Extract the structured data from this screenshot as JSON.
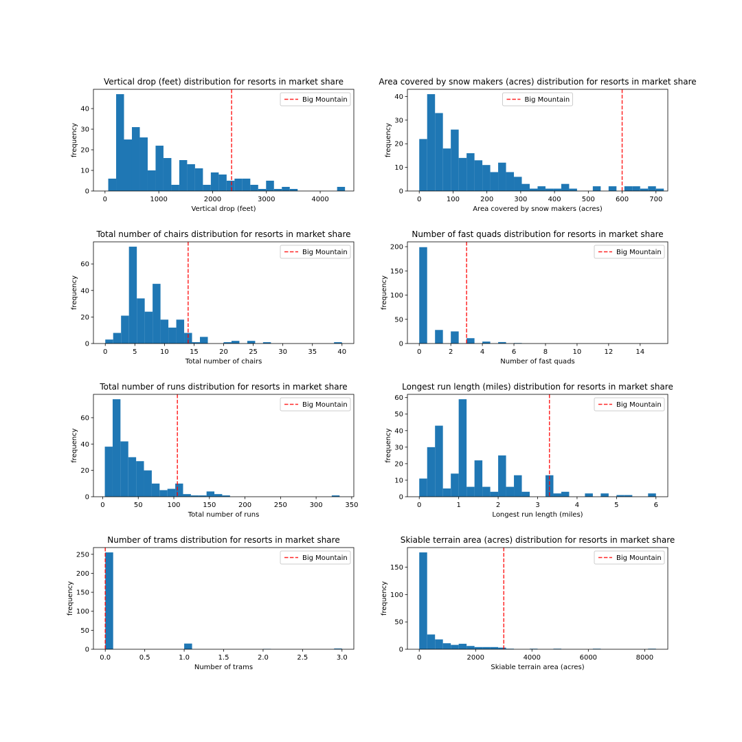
{
  "figure": {
    "width": 1080,
    "height": 1080,
    "background": "#ffffff"
  },
  "colors": {
    "bar": "#1f77b4",
    "marker": "#ff0000",
    "axis": "#000000",
    "legend_border": "#cccccc"
  },
  "ylabel_common": "frequency",
  "legend_label": "Big Mountain",
  "chart_data": [
    {
      "type": "bar",
      "title": "Vertical drop (feet) distribution for resorts in market share",
      "xlabel": "Vertical drop (feet)",
      "ylabel": "frequency",
      "xlim": [
        -215,
        4625
      ],
      "ylim": [
        0,
        49.35
      ],
      "xticks": [
        0,
        1000,
        2000,
        3000,
        4000
      ],
      "xtick_labels": [
        "0",
        "1000",
        "2000",
        "3000",
        "4000"
      ],
      "yticks": [
        0,
        10,
        20,
        30,
        40
      ],
      "ytick_labels": [
        "0",
        "10",
        "20",
        "30",
        "40"
      ],
      "bin_start": 60,
      "bin_width": 146.7,
      "values": [
        6,
        47,
        25,
        31,
        26,
        10,
        22,
        16,
        3,
        15,
        13,
        11,
        3,
        9,
        8,
        5,
        6,
        6,
        3,
        1,
        5,
        1,
        2,
        1,
        0,
        0,
        0,
        0,
        0,
        2
      ],
      "marker_value": 2353,
      "legend_label": "Big Mountain",
      "legend_loc": "upper right"
    },
    {
      "type": "bar",
      "title": "Area covered by snow makers (acres) distribution for resorts in market share",
      "xlabel": "Area covered by snow makers (acres)",
      "ylabel": "frequency",
      "xlim": [
        -35,
        735
      ],
      "ylim": [
        0,
        43.05
      ],
      "xticks": [
        0,
        100,
        200,
        300,
        400,
        500,
        600,
        700
      ],
      "xtick_labels": [
        "0",
        "100",
        "200",
        "300",
        "400",
        "500",
        "600",
        "700"
      ],
      "yticks": [
        0,
        10,
        20,
        30,
        40
      ],
      "ytick_labels": [
        "0",
        "10",
        "20",
        "30",
        "40"
      ],
      "bin_start": 0,
      "bin_width": 23.33,
      "values": [
        22,
        41,
        33,
        18,
        26,
        14,
        16,
        13,
        11,
        8,
        12,
        8,
        6,
        3,
        1,
        2,
        1,
        1,
        3,
        1,
        0,
        0,
        2,
        0,
        2,
        0,
        2,
        2,
        1,
        2,
        1
      ],
      "marker_value": 600,
      "legend_label": "Big Mountain",
      "legend_loc": "upper center"
    },
    {
      "type": "bar",
      "title": "Total number of chairs distribution for resorts in market share",
      "xlabel": "Total number of chairs",
      "ylabel": "frequency",
      "xlim": [
        -2,
        42
      ],
      "ylim": [
        0,
        76.65
      ],
      "xticks": [
        0,
        5,
        10,
        15,
        20,
        25,
        30,
        35,
        40
      ],
      "xtick_labels": [
        "0",
        "5",
        "10",
        "15",
        "20",
        "25",
        "30",
        "35",
        "40"
      ],
      "yticks": [
        0,
        20,
        40,
        60
      ],
      "ytick_labels": [
        "0",
        "20",
        "40",
        "60"
      ],
      "bin_start": 0,
      "bin_width": 1.333,
      "values": [
        3,
        8,
        21,
        73,
        34,
        24,
        45,
        18,
        12,
        18,
        8,
        1,
        5,
        0,
        0,
        1,
        2,
        0,
        2,
        0,
        1,
        0,
        0,
        0,
        0,
        0,
        0,
        0,
        0,
        1
      ],
      "marker_value": 14,
      "legend_label": "Big Mountain",
      "legend_loc": "upper right"
    },
    {
      "type": "bar",
      "title": "Number of fast quads distribution for resorts in market share",
      "xlabel": "Number of fast quads",
      "ylabel": "frequency",
      "xlim": [
        -0.75,
        15.75
      ],
      "ylim": [
        0,
        210
      ],
      "xticks": [
        0,
        2,
        4,
        6,
        8,
        10,
        12,
        14
      ],
      "xtick_labels": [
        "0",
        "2",
        "4",
        "6",
        "8",
        "10",
        "12",
        "14"
      ],
      "yticks": [
        0,
        50,
        100,
        150,
        200
      ],
      "ytick_labels": [
        "0",
        "50",
        "100",
        "150",
        "200"
      ],
      "bin_start": 0,
      "bin_width": 0.5,
      "values": [
        199,
        0,
        28,
        0,
        25,
        0,
        11,
        0,
        4,
        0,
        3,
        0,
        1
      ],
      "marker_value": 3,
      "legend_label": "Big Mountain",
      "legend_loc": "upper right"
    },
    {
      "type": "bar",
      "title": "Total number of runs distribution for resorts in market share",
      "xlabel": "Total number of runs",
      "ylabel": "frequency",
      "xlim": [
        -13,
        353
      ],
      "ylim": [
        0,
        77.7
      ],
      "xticks": [
        0,
        50,
        100,
        150,
        200,
        250,
        300,
        350
      ],
      "xtick_labels": [
        "0",
        "50",
        "100",
        "150",
        "200",
        "250",
        "300",
        "350"
      ],
      "yticks": [
        0,
        20,
        40,
        60
      ],
      "ytick_labels": [
        "0",
        "20",
        "40",
        "60"
      ],
      "bin_start": 3,
      "bin_width": 11,
      "values": [
        38,
        74,
        42,
        30,
        27,
        20,
        10,
        5,
        6,
        10,
        2,
        1,
        1,
        4,
        2,
        1,
        0,
        0,
        0,
        0,
        0,
        0,
        0,
        0,
        0,
        0,
        0,
        0,
        0,
        1
      ],
      "marker_value": 105,
      "legend_label": "Big Mountain",
      "legend_loc": "upper right"
    },
    {
      "type": "bar",
      "title": "Longest run length (miles) distribution for resorts in market share",
      "xlabel": "Longest run length (miles)",
      "ylabel": "frequency",
      "xlim": [
        -0.3,
        6.3
      ],
      "ylim": [
        0,
        61.95
      ],
      "xticks": [
        0,
        1,
        2,
        3,
        4,
        5,
        6
      ],
      "xtick_labels": [
        "0",
        "1",
        "2",
        "3",
        "4",
        "5",
        "6"
      ],
      "yticks": [
        0,
        10,
        20,
        30,
        40,
        50,
        60
      ],
      "ytick_labels": [
        "0",
        "10",
        "20",
        "30",
        "40",
        "50",
        "60"
      ],
      "bin_start": 0,
      "bin_width": 0.2,
      "values": [
        11,
        30,
        43,
        5,
        14,
        59,
        6,
        22,
        6,
        3,
        25,
        6,
        13,
        3,
        0,
        0,
        13,
        2,
        3,
        0,
        0,
        2,
        0,
        2,
        0,
        1,
        1,
        0,
        0,
        2
      ],
      "marker_value": 3.3,
      "legend_label": "Big Mountain",
      "legend_loc": "upper right"
    },
    {
      "type": "bar",
      "title": "Number of trams distribution for resorts in market share",
      "xlabel": "Number of trams",
      "ylabel": "frequency",
      "xlim": [
        -0.15,
        3.15
      ],
      "ylim": [
        0,
        267.75
      ],
      "xticks": [
        0.0,
        0.5,
        1.0,
        1.5,
        2.0,
        2.5,
        3.0
      ],
      "xtick_labels": [
        "0.0",
        "0.5",
        "1.0",
        "1.5",
        "2.0",
        "2.5",
        "3.0"
      ],
      "yticks": [
        0,
        50,
        100,
        150,
        200,
        250
      ],
      "ytick_labels": [
        "0",
        "50",
        "100",
        "150",
        "200",
        "250"
      ],
      "bin_start": 0,
      "bin_width": 0.1,
      "values": [
        255,
        0,
        0,
        0,
        0,
        0,
        0,
        0,
        0,
        0,
        15,
        0,
        0,
        0,
        0,
        0,
        0,
        0,
        0,
        0,
        1,
        0,
        0,
        0,
        0,
        0,
        0,
        0,
        0,
        2
      ],
      "marker_value": 0,
      "legend_label": "Big Mountain",
      "legend_loc": "upper right"
    },
    {
      "type": "bar",
      "title": "Skiable terrain area (acres) distribution for resorts in market share",
      "xlabel": "Skiable terrain area (acres)",
      "ylabel": "frequency",
      "xlim": [
        -420,
        8820
      ],
      "ylim": [
        0,
        185.85
      ],
      "xticks": [
        0,
        2000,
        4000,
        6000,
        8000
      ],
      "xtick_labels": [
        "0",
        "2000",
        "4000",
        "6000",
        "8000"
      ],
      "yticks": [
        0,
        50,
        100,
        150
      ],
      "ytick_labels": [
        "0",
        "50",
        "100",
        "150"
      ],
      "bin_start": 0,
      "bin_width": 280,
      "values": [
        177,
        27,
        18,
        11,
        8,
        10,
        6,
        4,
        4,
        4,
        3,
        1,
        0,
        0,
        1,
        0,
        0,
        1,
        0,
        0,
        0,
        0,
        1,
        0,
        0,
        0,
        0,
        0,
        0,
        1
      ],
      "marker_value": 3000,
      "legend_label": "Big Mountain",
      "legend_loc": "upper right"
    }
  ]
}
